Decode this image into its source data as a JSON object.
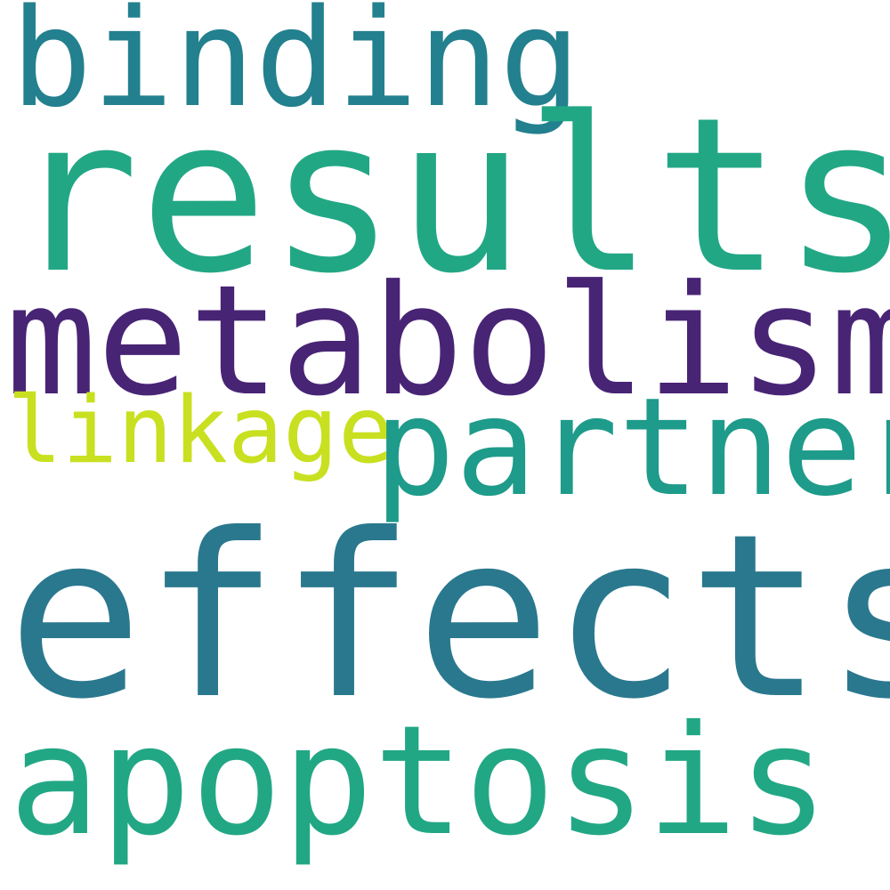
{
  "words": [
    {
      "id": "binding",
      "text": "binding",
      "color": "#23808e"
    },
    {
      "id": "results",
      "text": "results",
      "color": "#22a785"
    },
    {
      "id": "metabolism",
      "text": "metabolism",
      "color": "#482475"
    },
    {
      "id": "linkage",
      "text": "linkage",
      "color": "#c8e020"
    },
    {
      "id": "partner",
      "text": "partner",
      "color": "#1e9b8a"
    },
    {
      "id": "effects",
      "text": "effects",
      "color": "#2a788e"
    },
    {
      "id": "apoptosis",
      "text": "apoptosis",
      "color": "#22a785"
    }
  ]
}
